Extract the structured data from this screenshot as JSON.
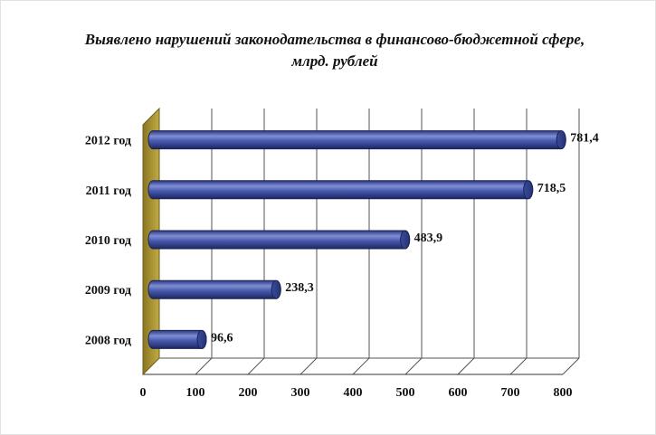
{
  "chart_data": {
    "type": "bar",
    "orientation": "horizontal",
    "title_line1": "Выявлено нарушений законодательства в финансово-бюджетной сфере,",
    "title_line2": "млрд. рублей",
    "categories": [
      "2008 год",
      "2009 год",
      "2010 год",
      "2011 год",
      "2012 год"
    ],
    "values": [
      96.6,
      238.3,
      483.9,
      718.5,
      781.4
    ],
    "value_labels": [
      "96,6",
      "238,3",
      "483,9",
      "718,5",
      "781,4"
    ],
    "x_ticks": [
      "0",
      "100",
      "200",
      "300",
      "400",
      "500",
      "600",
      "700",
      "800"
    ],
    "xlim": [
      0,
      800
    ],
    "grid": true,
    "legend": "none",
    "colors": {
      "bar": "#3a4c9a",
      "bar_light": "#8c9bd8",
      "bar_dark": "#1c2762",
      "wall": "#a8922f",
      "grid": "#555555"
    }
  }
}
